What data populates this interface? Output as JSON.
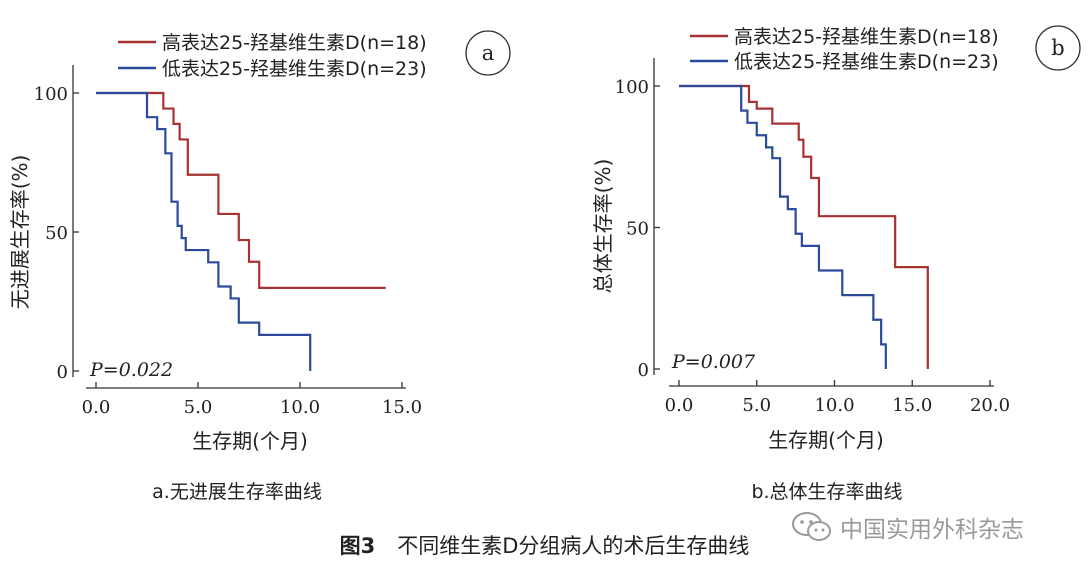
{
  "figure": {
    "number": "图3",
    "title": "不同维生素D分组病人的术后生存曲线"
  },
  "watermark": {
    "text": "中国实用外科杂志",
    "icon": "wechat-icon"
  },
  "chart_data": [
    {
      "type": "line",
      "step": true,
      "panel_letter": "a",
      "caption": "a.无进展生存率曲线",
      "ylabel": "无进展生存率(%)",
      "xlabel": "生存期(个月)",
      "xlim": [
        0,
        15
      ],
      "ylim": [
        0,
        100
      ],
      "xticks": [
        0,
        5,
        10,
        15
      ],
      "xtick_labels": [
        "0.0",
        "5.0",
        "10.0",
        "15.0"
      ],
      "yticks": [
        0,
        50,
        100
      ],
      "ytick_labels": [
        "0",
        "50",
        "100"
      ],
      "annotation": "P=0.022",
      "legend_position": "top",
      "series": [
        {
          "name": "高表达25-羟基维生素D(n=18)",
          "color": "#a83232",
          "x": [
            0,
            3.3,
            3.8,
            4.1,
            4.5,
            6.0,
            7.0,
            7.5,
            8.0,
            14.2
          ],
          "y": [
            100,
            94.4,
            88.9,
            83.3,
            70.6,
            56.5,
            47.1,
            39.3,
            29.9,
            29.9
          ]
        },
        {
          "name": "低表达25-羟基维生素D(n=23)",
          "color": "#2b4a9c",
          "x": [
            0,
            2.5,
            3.0,
            3.4,
            3.7,
            4.0,
            4.2,
            4.4,
            5.5,
            6.0,
            6.6,
            7.0,
            8.0,
            10.5,
            10.5
          ],
          "y": [
            100,
            91.3,
            87.0,
            78.3,
            60.9,
            52.2,
            47.8,
            43.5,
            39.1,
            30.4,
            26.1,
            17.4,
            13.0,
            13.0,
            0
          ]
        }
      ]
    },
    {
      "type": "line",
      "step": true,
      "panel_letter": "b",
      "caption": "b.总体生存率曲线",
      "ylabel": "总体生存率(%)",
      "xlabel": "生存期(个月)",
      "xlim": [
        0,
        20
      ],
      "ylim": [
        0,
        100
      ],
      "xticks": [
        0,
        5,
        10,
        15,
        20
      ],
      "xtick_labels": [
        "0.0",
        "5.0",
        "10.0",
        "15.0",
        "20.0"
      ],
      "yticks": [
        0,
        50,
        100
      ],
      "ytick_labels": [
        "0",
        "50",
        "100"
      ],
      "annotation": "P=0.007",
      "legend_position": "top",
      "series": [
        {
          "name": "高表达25-羟基维生素D(n=18)",
          "color": "#a83232",
          "x": [
            0,
            4.5,
            5.0,
            6.0,
            7.7,
            8.0,
            8.5,
            9.0,
            13.9,
            16.0,
            16.0
          ],
          "y": [
            100,
            94.4,
            92.0,
            86.7,
            81.0,
            75.0,
            67.5,
            54.0,
            36.0,
            36.0,
            0
          ]
        },
        {
          "name": "低表达25-羟基维生素D(n=23)",
          "color": "#2b4a9c",
          "x": [
            0,
            4.0,
            4.4,
            5.0,
            5.6,
            6.0,
            6.5,
            7.0,
            7.5,
            7.9,
            9.0,
            10.5,
            12.5,
            13.0,
            13.3,
            13.3
          ],
          "y": [
            100,
            91.3,
            87.0,
            82.6,
            78.3,
            74.5,
            60.9,
            56.5,
            47.8,
            43.5,
            34.8,
            26.1,
            17.4,
            8.7,
            4.3,
            0
          ]
        }
      ]
    }
  ]
}
